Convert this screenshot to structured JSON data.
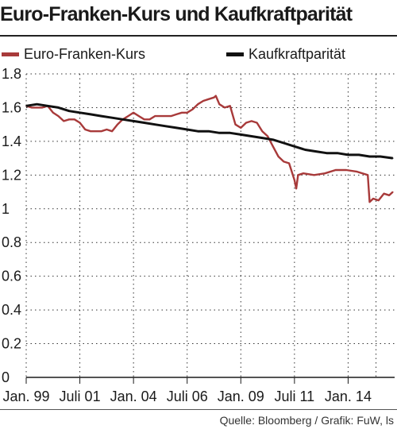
{
  "header": {
    "title": "Euro-Franken-Kurs und Kaufkraftparität"
  },
  "footer": {
    "source": "Quelle: Bloomberg / Grafik: FuW, ls"
  },
  "colors": {
    "eurchf": "#a83a3a",
    "ppp": "#111111",
    "grid": "#333333"
  },
  "chart_data": {
    "type": "line",
    "title": "Euro-Franken-Kurs und Kaufkraftparität",
    "xlabel": "",
    "ylabel": "",
    "ylim": [
      0,
      1.8
    ],
    "yticks": [
      "0",
      "0.2",
      "0.4",
      "0.6",
      "0.8",
      "1",
      "1.2",
      "1.4",
      "1.6",
      "1.8"
    ],
    "xticks": [
      "Jan. 99",
      "Juli 01",
      "Jan. 04",
      "Juli 06",
      "Jan. 09",
      "Juli 11",
      "Jan. 14"
    ],
    "grid": true,
    "legend": "top",
    "series": [
      {
        "name": "Euro-Franken-Kurs",
        "color_key": "eurchf",
        "x": [
          "1999-01",
          "1999-04",
          "1999-07",
          "1999-10",
          "2000-01",
          "2000-04",
          "2000-07",
          "2000-10",
          "2001-01",
          "2001-04",
          "2001-07",
          "2001-10",
          "2002-01",
          "2002-04",
          "2002-07",
          "2002-10",
          "2003-01",
          "2003-04",
          "2003-07",
          "2003-10",
          "2004-01",
          "2004-04",
          "2004-07",
          "2004-10",
          "2005-01",
          "2005-04",
          "2005-07",
          "2005-10",
          "2006-01",
          "2006-04",
          "2006-07",
          "2006-10",
          "2007-01",
          "2007-04",
          "2007-07",
          "2007-10",
          "2007-11",
          "2008-01",
          "2008-04",
          "2008-07",
          "2008-10",
          "2009-01",
          "2009-04",
          "2009-07",
          "2009-10",
          "2010-01",
          "2010-04",
          "2010-07",
          "2010-10",
          "2011-01",
          "2011-04",
          "2011-07",
          "2011-08",
          "2011-09",
          "2011-12",
          "2012-06",
          "2012-12",
          "2013-06",
          "2013-12",
          "2014-06",
          "2014-12",
          "2015-01",
          "2015-03",
          "2015-06",
          "2015-09",
          "2015-12",
          "2016-02"
        ],
        "y": [
          1.61,
          1.6,
          1.6,
          1.6,
          1.61,
          1.57,
          1.55,
          1.52,
          1.53,
          1.53,
          1.51,
          1.47,
          1.46,
          1.46,
          1.46,
          1.47,
          1.46,
          1.5,
          1.53,
          1.55,
          1.57,
          1.55,
          1.53,
          1.53,
          1.55,
          1.55,
          1.55,
          1.55,
          1.56,
          1.57,
          1.57,
          1.59,
          1.62,
          1.64,
          1.65,
          1.66,
          1.67,
          1.62,
          1.6,
          1.61,
          1.5,
          1.48,
          1.51,
          1.52,
          1.51,
          1.46,
          1.43,
          1.37,
          1.31,
          1.28,
          1.27,
          1.17,
          1.12,
          1.2,
          1.21,
          1.2,
          1.21,
          1.23,
          1.23,
          1.22,
          1.2,
          1.04,
          1.06,
          1.05,
          1.09,
          1.08,
          1.1
        ]
      },
      {
        "name": "Kaufkraftparität",
        "color_key": "ppp",
        "x": [
          "1999-01",
          "1999-07",
          "2000-01",
          "2000-07",
          "2001-01",
          "2001-07",
          "2002-01",
          "2002-07",
          "2003-01",
          "2003-07",
          "2004-01",
          "2004-07",
          "2005-01",
          "2005-07",
          "2006-01",
          "2006-07",
          "2007-01",
          "2007-07",
          "2008-01",
          "2008-07",
          "2009-01",
          "2009-07",
          "2010-01",
          "2010-07",
          "2011-01",
          "2011-07",
          "2012-01",
          "2012-07",
          "2013-01",
          "2013-07",
          "2014-01",
          "2014-07",
          "2015-01",
          "2015-07",
          "2016-02"
        ],
        "y": [
          1.61,
          1.62,
          1.61,
          1.6,
          1.58,
          1.57,
          1.56,
          1.55,
          1.54,
          1.53,
          1.52,
          1.51,
          1.5,
          1.49,
          1.48,
          1.47,
          1.46,
          1.46,
          1.45,
          1.45,
          1.44,
          1.43,
          1.42,
          1.41,
          1.39,
          1.37,
          1.35,
          1.34,
          1.33,
          1.33,
          1.32,
          1.32,
          1.31,
          1.31,
          1.3
        ]
      }
    ]
  }
}
